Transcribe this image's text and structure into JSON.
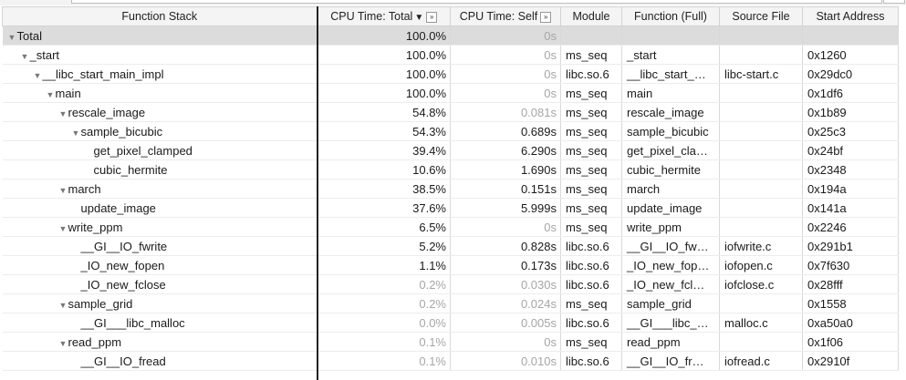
{
  "columns": {
    "stack": "Function Stack",
    "total": "CPU Time: Total",
    "total_sort_icon": "▼",
    "total_expand_icon": "»",
    "self": "CPU Time: Self",
    "self_expand_icon": "»",
    "module": "Module",
    "full": "Function (Full)",
    "source": "Source File",
    "addr": "Start Address"
  },
  "rows": [
    {
      "depth": 0,
      "expander": "▼",
      "name": "Total",
      "total": "100.0%",
      "self": "0s",
      "module": "",
      "full": "",
      "source": "",
      "addr": "",
      "total_muted": false,
      "self_muted": true
    },
    {
      "depth": 1,
      "expander": "▼",
      "name": "_start",
      "total": "100.0%",
      "self": "0s",
      "module": "ms_seq",
      "full": "_start",
      "source": "",
      "addr": "0x1260",
      "total_muted": false,
      "self_muted": true
    },
    {
      "depth": 2,
      "expander": "▼",
      "name": "__libc_start_main_impl",
      "total": "100.0%",
      "self": "0s",
      "module": "libc.so.6",
      "full": "__libc_start_…",
      "source": "libc-start.c",
      "addr": "0x29dc0",
      "total_muted": false,
      "self_muted": true
    },
    {
      "depth": 3,
      "expander": "▼",
      "name": "main",
      "total": "100.0%",
      "self": "0s",
      "module": "ms_seq",
      "full": "main",
      "source": "",
      "addr": "0x1df6",
      "total_muted": false,
      "self_muted": true
    },
    {
      "depth": 4,
      "expander": "▼",
      "name": "rescale_image",
      "total": "54.8%",
      "self": "0.081s",
      "module": "ms_seq",
      "full": "rescale_image",
      "source": "",
      "addr": "0x1b89",
      "total_muted": false,
      "self_muted": true
    },
    {
      "depth": 5,
      "expander": "▼",
      "name": "sample_bicubic",
      "total": "54.3%",
      "self": "0.689s",
      "module": "ms_seq",
      "full": "sample_bicubic",
      "source": "",
      "addr": "0x25c3",
      "total_muted": false,
      "self_muted": false
    },
    {
      "depth": 6,
      "expander": "",
      "name": "get_pixel_clamped",
      "total": "39.4%",
      "self": "6.290s",
      "module": "ms_seq",
      "full": "get_pixel_cla…",
      "source": "",
      "addr": "0x24bf",
      "total_muted": false,
      "self_muted": false
    },
    {
      "depth": 6,
      "expander": "",
      "name": "cubic_hermite",
      "total": "10.6%",
      "self": "1.690s",
      "module": "ms_seq",
      "full": "cubic_hermite",
      "source": "",
      "addr": "0x2348",
      "total_muted": false,
      "self_muted": false
    },
    {
      "depth": 4,
      "expander": "▼",
      "name": "march",
      "total": "38.5%",
      "self": "0.151s",
      "module": "ms_seq",
      "full": "march",
      "source": "",
      "addr": "0x194a",
      "total_muted": false,
      "self_muted": false
    },
    {
      "depth": 5,
      "expander": "",
      "name": "update_image",
      "total": "37.6%",
      "self": "5.999s",
      "module": "ms_seq",
      "full": "update_image",
      "source": "",
      "addr": "0x141a",
      "total_muted": false,
      "self_muted": false
    },
    {
      "depth": 4,
      "expander": "▼",
      "name": "write_ppm",
      "total": "6.5%",
      "self": "0s",
      "module": "ms_seq",
      "full": "write_ppm",
      "source": "",
      "addr": "0x2246",
      "total_muted": false,
      "self_muted": true
    },
    {
      "depth": 5,
      "expander": "",
      "name": "__GI__IO_fwrite",
      "total": "5.2%",
      "self": "0.828s",
      "module": "libc.so.6",
      "full": "__GI__IO_fw…",
      "source": "iofwrite.c",
      "addr": "0x291b1",
      "total_muted": false,
      "self_muted": false
    },
    {
      "depth": 5,
      "expander": "",
      "name": "_IO_new_fopen",
      "total": "1.1%",
      "self": "0.173s",
      "module": "libc.so.6",
      "full": "_IO_new_fop…",
      "source": "iofopen.c",
      "addr": "0x7f630",
      "total_muted": false,
      "self_muted": false
    },
    {
      "depth": 5,
      "expander": "",
      "name": "_IO_new_fclose",
      "total": "0.2%",
      "self": "0.030s",
      "module": "libc.so.6",
      "full": "_IO_new_fcl…",
      "source": "iofclose.c",
      "addr": "0x28fff",
      "total_muted": true,
      "self_muted": true
    },
    {
      "depth": 4,
      "expander": "▼",
      "name": "sample_grid",
      "total": "0.2%",
      "self": "0.024s",
      "module": "ms_seq",
      "full": "sample_grid",
      "source": "",
      "addr": "0x1558",
      "total_muted": true,
      "self_muted": true
    },
    {
      "depth": 5,
      "expander": "",
      "name": "__GI___libc_malloc",
      "total": "0.0%",
      "self": "0.005s",
      "module": "libc.so.6",
      "full": "__GI___libc_…",
      "source": "malloc.c",
      "addr": "0xa50a0",
      "total_muted": true,
      "self_muted": true
    },
    {
      "depth": 4,
      "expander": "▼",
      "name": "read_ppm",
      "total": "0.1%",
      "self": "0s",
      "module": "ms_seq",
      "full": "read_ppm",
      "source": "",
      "addr": "0x1f06",
      "total_muted": true,
      "self_muted": true
    },
    {
      "depth": 5,
      "expander": "",
      "name": "__GI__IO_fread",
      "total": "0.1%",
      "self": "0.010s",
      "module": "libc.so.6",
      "full": "__GI__IO_fr…",
      "source": "iofread.c",
      "addr": "0x2910f",
      "total_muted": true,
      "self_muted": true
    }
  ]
}
